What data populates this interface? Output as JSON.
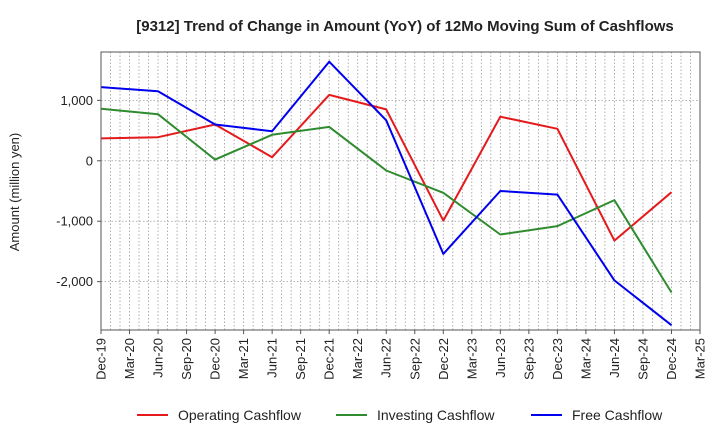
{
  "chart_data": {
    "type": "line",
    "title": "[9312]  Trend of Change in Amount (YoY) of 12Mo Moving Sum of Cashflows",
    "xlabel": "",
    "ylabel": "Amount (million yen)",
    "ylim": [
      -2800,
      1800
    ],
    "yticks": [
      1000,
      0,
      -1000,
      -2000
    ],
    "ytick_labels": [
      "1,000",
      "0",
      "-1,000",
      "-2,000"
    ],
    "grid": true,
    "legend_position": "bottom",
    "categories": [
      "Dec-19",
      "Mar-20",
      "Jun-20",
      "Sep-20",
      "Dec-20",
      "Mar-21",
      "Jun-21",
      "Sep-21",
      "Dec-21",
      "Mar-22",
      "Jun-22",
      "Sep-22",
      "Dec-22",
      "Mar-23",
      "Jun-23",
      "Sep-23",
      "Dec-23",
      "Mar-24",
      "Jun-24",
      "Sep-24",
      "Dec-24",
      "Mar-25"
    ],
    "series": [
      {
        "name": "Operating Cashflow",
        "color": "#e41a1c",
        "points": [
          {
            "period": 0,
            "value": 370
          },
          {
            "period": 2,
            "value": 390
          },
          {
            "period": 4,
            "value": 600
          },
          {
            "period": 6,
            "value": 60
          },
          {
            "period": 8,
            "value": 1090
          },
          {
            "period": 10,
            "value": 850
          },
          {
            "period": 12,
            "value": -990
          },
          {
            "period": 14,
            "value": 730
          },
          {
            "period": 16,
            "value": 530
          },
          {
            "period": 18,
            "value": -1320
          },
          {
            "period": 20,
            "value": -520
          }
        ]
      },
      {
        "name": "Investing Cashflow",
        "color": "#2e8b2e",
        "points": [
          {
            "period": 0,
            "value": 860
          },
          {
            "period": 2,
            "value": 770
          },
          {
            "period": 4,
            "value": 20
          },
          {
            "period": 6,
            "value": 430
          },
          {
            "period": 8,
            "value": 560
          },
          {
            "period": 10,
            "value": -160
          },
          {
            "period": 12,
            "value": -530
          },
          {
            "period": 14,
            "value": -1220
          },
          {
            "period": 16,
            "value": -1080
          },
          {
            "period": 18,
            "value": -650
          },
          {
            "period": 20,
            "value": -2180
          }
        ]
      },
      {
        "name": "Free Cashflow",
        "color": "#0000ee",
        "points": [
          {
            "period": 0,
            "value": 1220
          },
          {
            "period": 2,
            "value": 1150
          },
          {
            "period": 4,
            "value": 600
          },
          {
            "period": 6,
            "value": 490
          },
          {
            "period": 8,
            "value": 1640
          },
          {
            "period": 10,
            "value": 670
          },
          {
            "period": 12,
            "value": -1540
          },
          {
            "period": 14,
            "value": -500
          },
          {
            "period": 16,
            "value": -560
          },
          {
            "period": 18,
            "value": -1980
          },
          {
            "period": 20,
            "value": -2720
          }
        ]
      }
    ]
  }
}
